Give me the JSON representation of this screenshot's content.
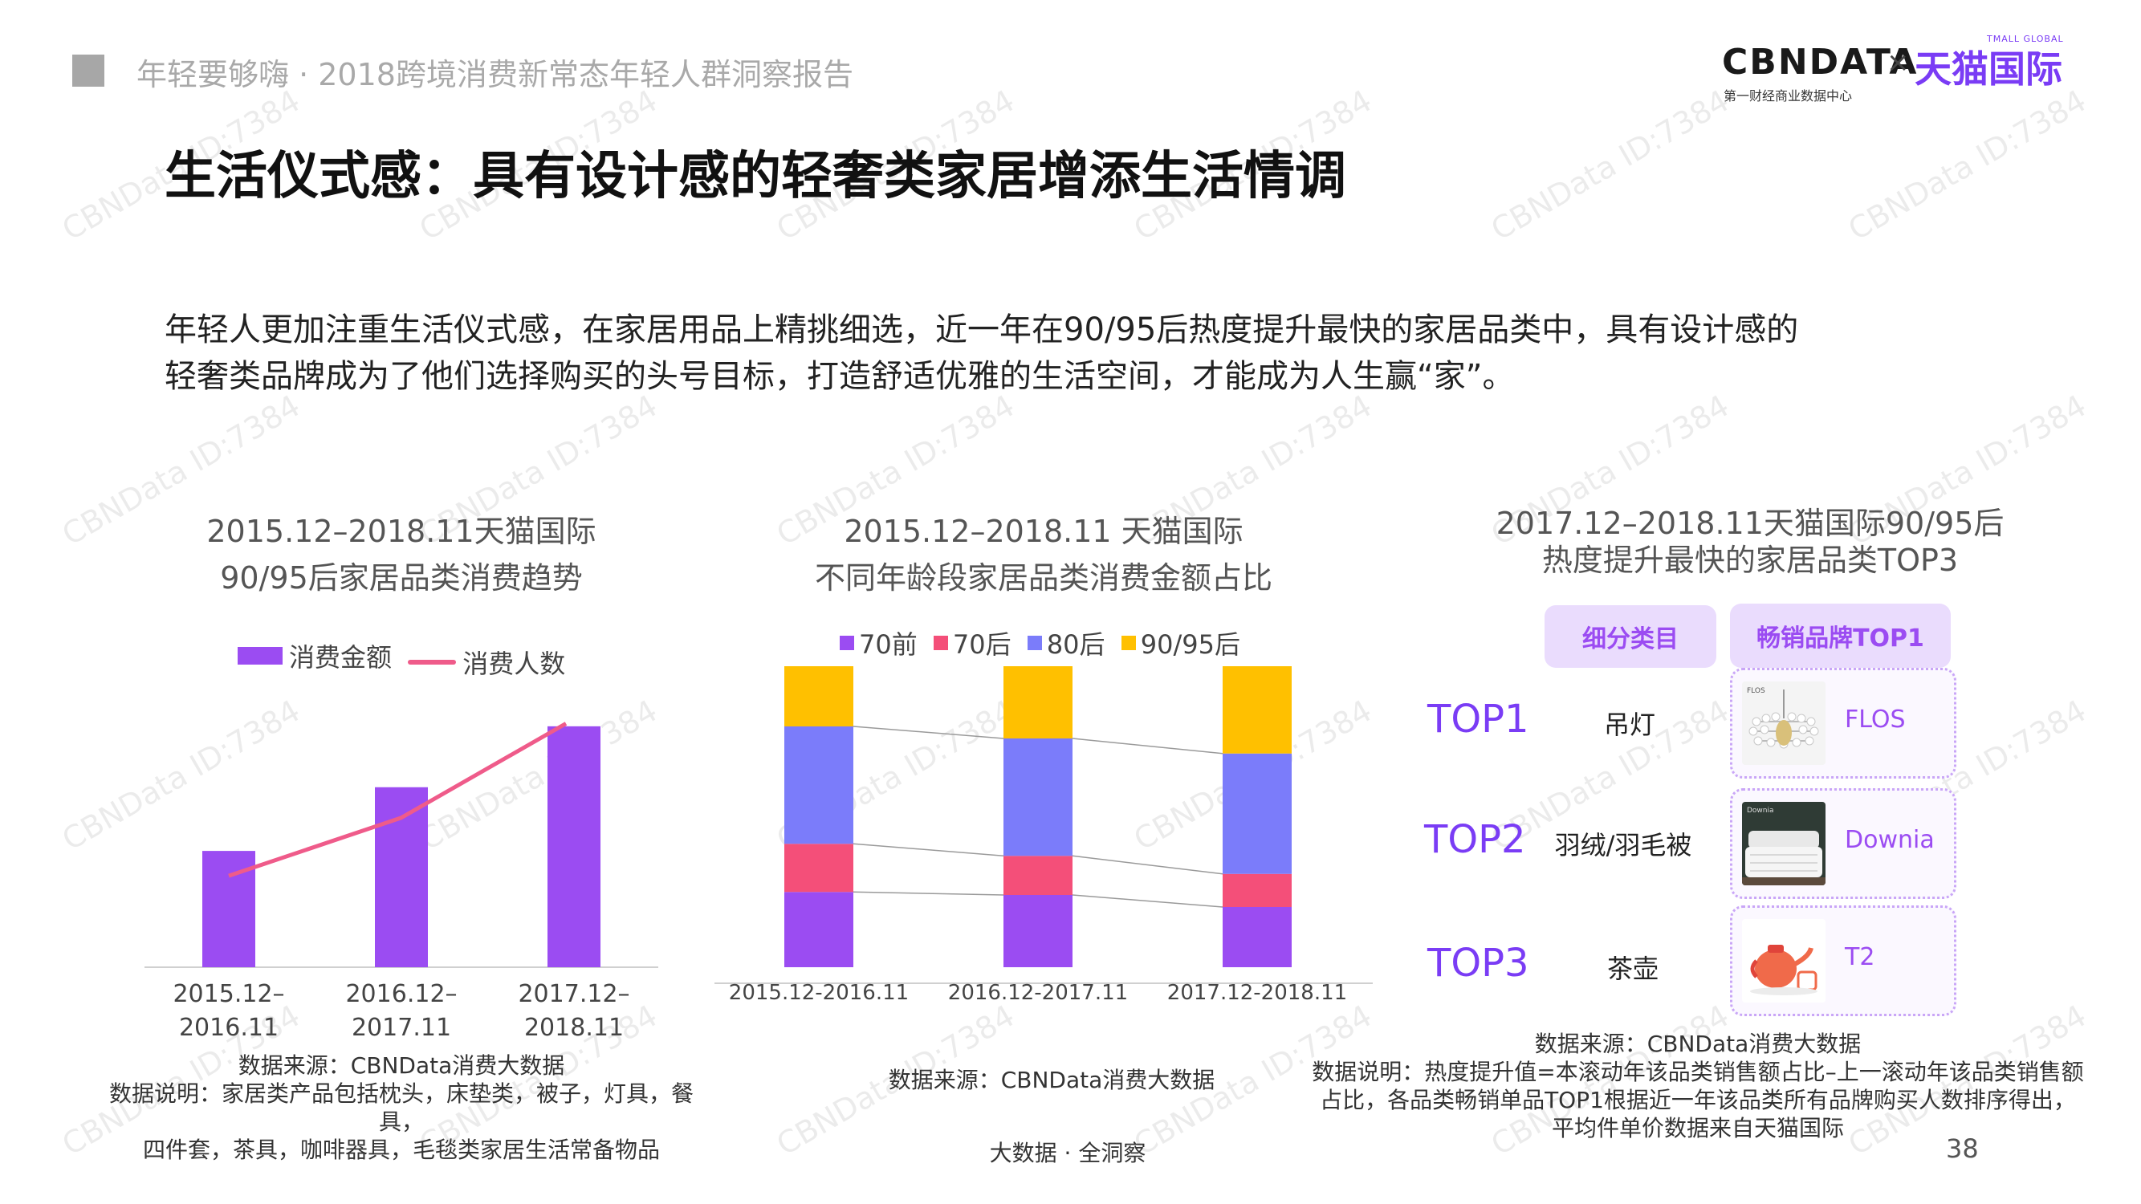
{
  "header": {
    "report_title": "年轻要够嗨 · 2018跨境消费新常态年轻人群洞察报告",
    "logo_cbn": "CBNDATA",
    "logo_x": "×",
    "logo_tmall": "天猫国际",
    "logo_sub": "第一财经商业数据中心",
    "logo_tmall_sub": "TMALL GLOBAL"
  },
  "watermark": "CBNData ID:7384",
  "main_title": "生活仪式感：具有设计感的轻奢类家居增添生活情调",
  "intro": [
    "年轻人更加注重生活仪式感，在家居用品上精挑细选，近一年在90/95后热度提升最快的家居品类中，具有设计感的",
    "轻奢类品牌成为了他们选择购买的头号目标，打造舒适优雅的生活空间，才能成为人生赢“家”。"
  ],
  "panel1": {
    "title_lines": [
      "2015.12–2018.11天猫国际",
      "90/95后家居品类消费趋势"
    ],
    "legend": {
      "bar": "消费金额",
      "line": "消费人数"
    },
    "source_lines": [
      "数据来源：CBNData消费大数据",
      "数据说明：家居类产品包括枕头，床垫类，被子，灯具，餐具，",
      "四件套，茶具，咖啡器具，毛毯类家居生活常备物品"
    ]
  },
  "panel2": {
    "title_lines": [
      "2015.12–2018.11 天猫国际",
      "不同年龄段家居品类消费金额占比"
    ],
    "legend": [
      "70前",
      "70后",
      "80后",
      "90/95后"
    ],
    "source": "数据来源：CBNData消费大数据"
  },
  "panel3": {
    "title_lines": [
      "2017.12–2018.11天猫国际90/95后",
      "热度提升最快的家居品类TOP3"
    ],
    "header_subcat": "细分类目",
    "header_brand": "畅销品牌TOP1",
    "rows": [
      {
        "rank": "TOP1",
        "category": "吊灯",
        "brand": "FLOS",
        "image_icon": "chandelier-image"
      },
      {
        "rank": "TOP2",
        "category": "羽绒/羽毛被",
        "brand": "Downia",
        "image_icon": "duvet-bed-image"
      },
      {
        "rank": "TOP3",
        "category": "茶壶",
        "brand": "T2",
        "image_icon": "teapot-image"
      }
    ],
    "source_lines": [
      "数据来源：CBNData消费大数据",
      "数据说明：热度提升值=本滚动年该品类销售额占比–上一滚动年该品类销售额",
      "占比，各品类畅销单品TOP1根据近一年该品类所有品牌购买人数排序得出，",
      "平均件单价数据来自天猫国际"
    ]
  },
  "footer": {
    "center": "大数据 · 全洞察",
    "page": "38"
  },
  "colors": {
    "purple": "#9b4cf2",
    "pink_line": "#ef5b8a",
    "seg_70qian": "#9b4cf2",
    "seg_70hou": "#f44f79",
    "seg_80hou": "#7b7cfa",
    "seg_90hou": "#ffc000",
    "accent": "#7a3cf5"
  },
  "chart_data": [
    {
      "type": "bar",
      "title": "2015.12–2018.11天猫国际 90/95后家居品类消费趋势",
      "categories": [
        "2015.12–2016.11",
        "2016.12–2017.11",
        "2017.12–2018.11"
      ],
      "category_lines": [
        [
          "2015.12–",
          "2016.11"
        ],
        [
          "2016.12–",
          "2017.11"
        ],
        [
          "2017.12–",
          "2018.11"
        ]
      ],
      "series": [
        {
          "name": "消费金额",
          "kind": "bar",
          "values": [
            42,
            65,
            87
          ]
        },
        {
          "name": "消费人数",
          "kind": "line",
          "values": [
            33,
            54,
            88
          ]
        }
      ],
      "ylim": [
        0,
        100
      ],
      "grid": false,
      "legend_position": "top"
    },
    {
      "type": "bar",
      "stacked": true,
      "normalized": true,
      "title": "2015.12–2018.11 天猫国际 不同年龄段家居品类消费金额占比",
      "categories": [
        "2015.12-2016.11",
        "2016.12-2017.11",
        "2017.12-2018.11"
      ],
      "series": [
        {
          "name": "70前",
          "values": [
            0.25,
            0.24,
            0.2
          ]
        },
        {
          "name": "70后",
          "values": [
            0.16,
            0.13,
            0.11
          ]
        },
        {
          "name": "80后",
          "values": [
            0.39,
            0.39,
            0.4
          ]
        },
        {
          "name": "90/95后",
          "values": [
            0.2,
            0.24,
            0.29
          ]
        }
      ],
      "ylim": [
        0,
        1
      ],
      "grid": false,
      "legend_position": "top"
    }
  ]
}
